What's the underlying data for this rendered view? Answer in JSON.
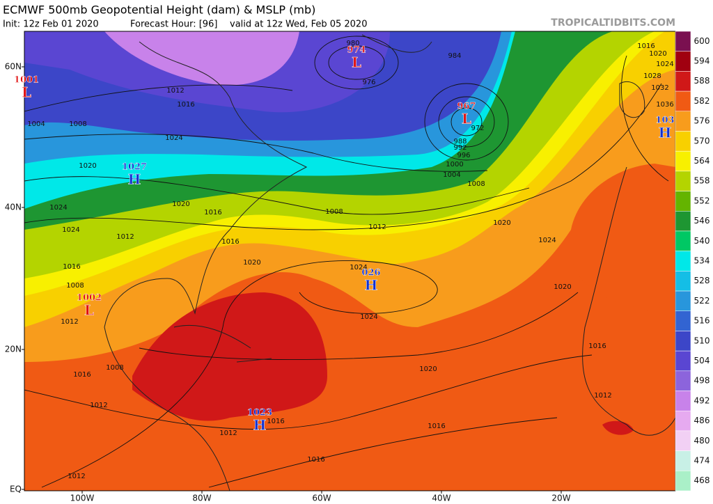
{
  "header": {
    "title": "ECMWF 500mb Geopotential Height (dam) & MSLP (mb)",
    "init": "Init: 12z Feb 01 2020",
    "forecast_hour": "Forecast Hour: [96]",
    "valid": "valid at 12z Wed, Feb 05 2020",
    "watermark": "TROPICALTIDBITS.COM"
  },
  "latitude_labels": [
    "60N",
    "40N",
    "20N",
    "EQ"
  ],
  "longitude_labels": [
    "100W",
    "80W",
    "60W",
    "40W",
    "20W"
  ],
  "colorbar": {
    "labels": [
      "600",
      "594",
      "588",
      "582",
      "576",
      "570",
      "564",
      "558",
      "552",
      "546",
      "540",
      "534",
      "528",
      "522",
      "516",
      "510",
      "504",
      "498",
      "492",
      "486",
      "480",
      "474",
      "468"
    ],
    "colors": [
      "#7a1050",
      "#a00010",
      "#d01818",
      "#f05a14",
      "#f89c1c",
      "#f8d000",
      "#f8f000",
      "#b4d400",
      "#64b400",
      "#1e9632",
      "#00c864",
      "#00e8e8",
      "#14bee6",
      "#2896dc",
      "#3264d2",
      "#3c46c8",
      "#5a46d2",
      "#8c64dc",
      "#c882ea",
      "#e6aaf0",
      "#f2d0f4",
      "#c8f0e6",
      "#aaf0c8"
    ]
  },
  "pressure_centers": [
    {
      "letter": "L",
      "pressure": "1001"
    },
    {
      "letter": "L",
      "pressure": "974"
    },
    {
      "letter": "L",
      "pressure": "967"
    },
    {
      "letter": "H",
      "pressure": "103"
    },
    {
      "letter": "H",
      "pressure": "1027"
    },
    {
      "letter": "H",
      "pressure": "026"
    },
    {
      "letter": "L",
      "pressure": "1002"
    },
    {
      "letter": "H",
      "pressure": "1023"
    }
  ],
  "isobar_labels": [
    "1012",
    "1016",
    "1004",
    "1008",
    "1024",
    "1020",
    "1020",
    "1016",
    "1024",
    "1024",
    "1012",
    "1016",
    "1016",
    "1008",
    "1012",
    "1020",
    "1024",
    "1024",
    "1020",
    "1016",
    "1012",
    "1012",
    "1016",
    "1008",
    "1012",
    "1016",
    "1016",
    "1008",
    "1012",
    "1020",
    "1024",
    "1020",
    "1016",
    "1012",
    "984",
    "976",
    "980",
    "988",
    "992",
    "996",
    "1000",
    "1004",
    "1008",
    "972",
    "1016",
    "1020",
    "1024",
    "1028",
    "1032",
    "1036"
  ]
}
